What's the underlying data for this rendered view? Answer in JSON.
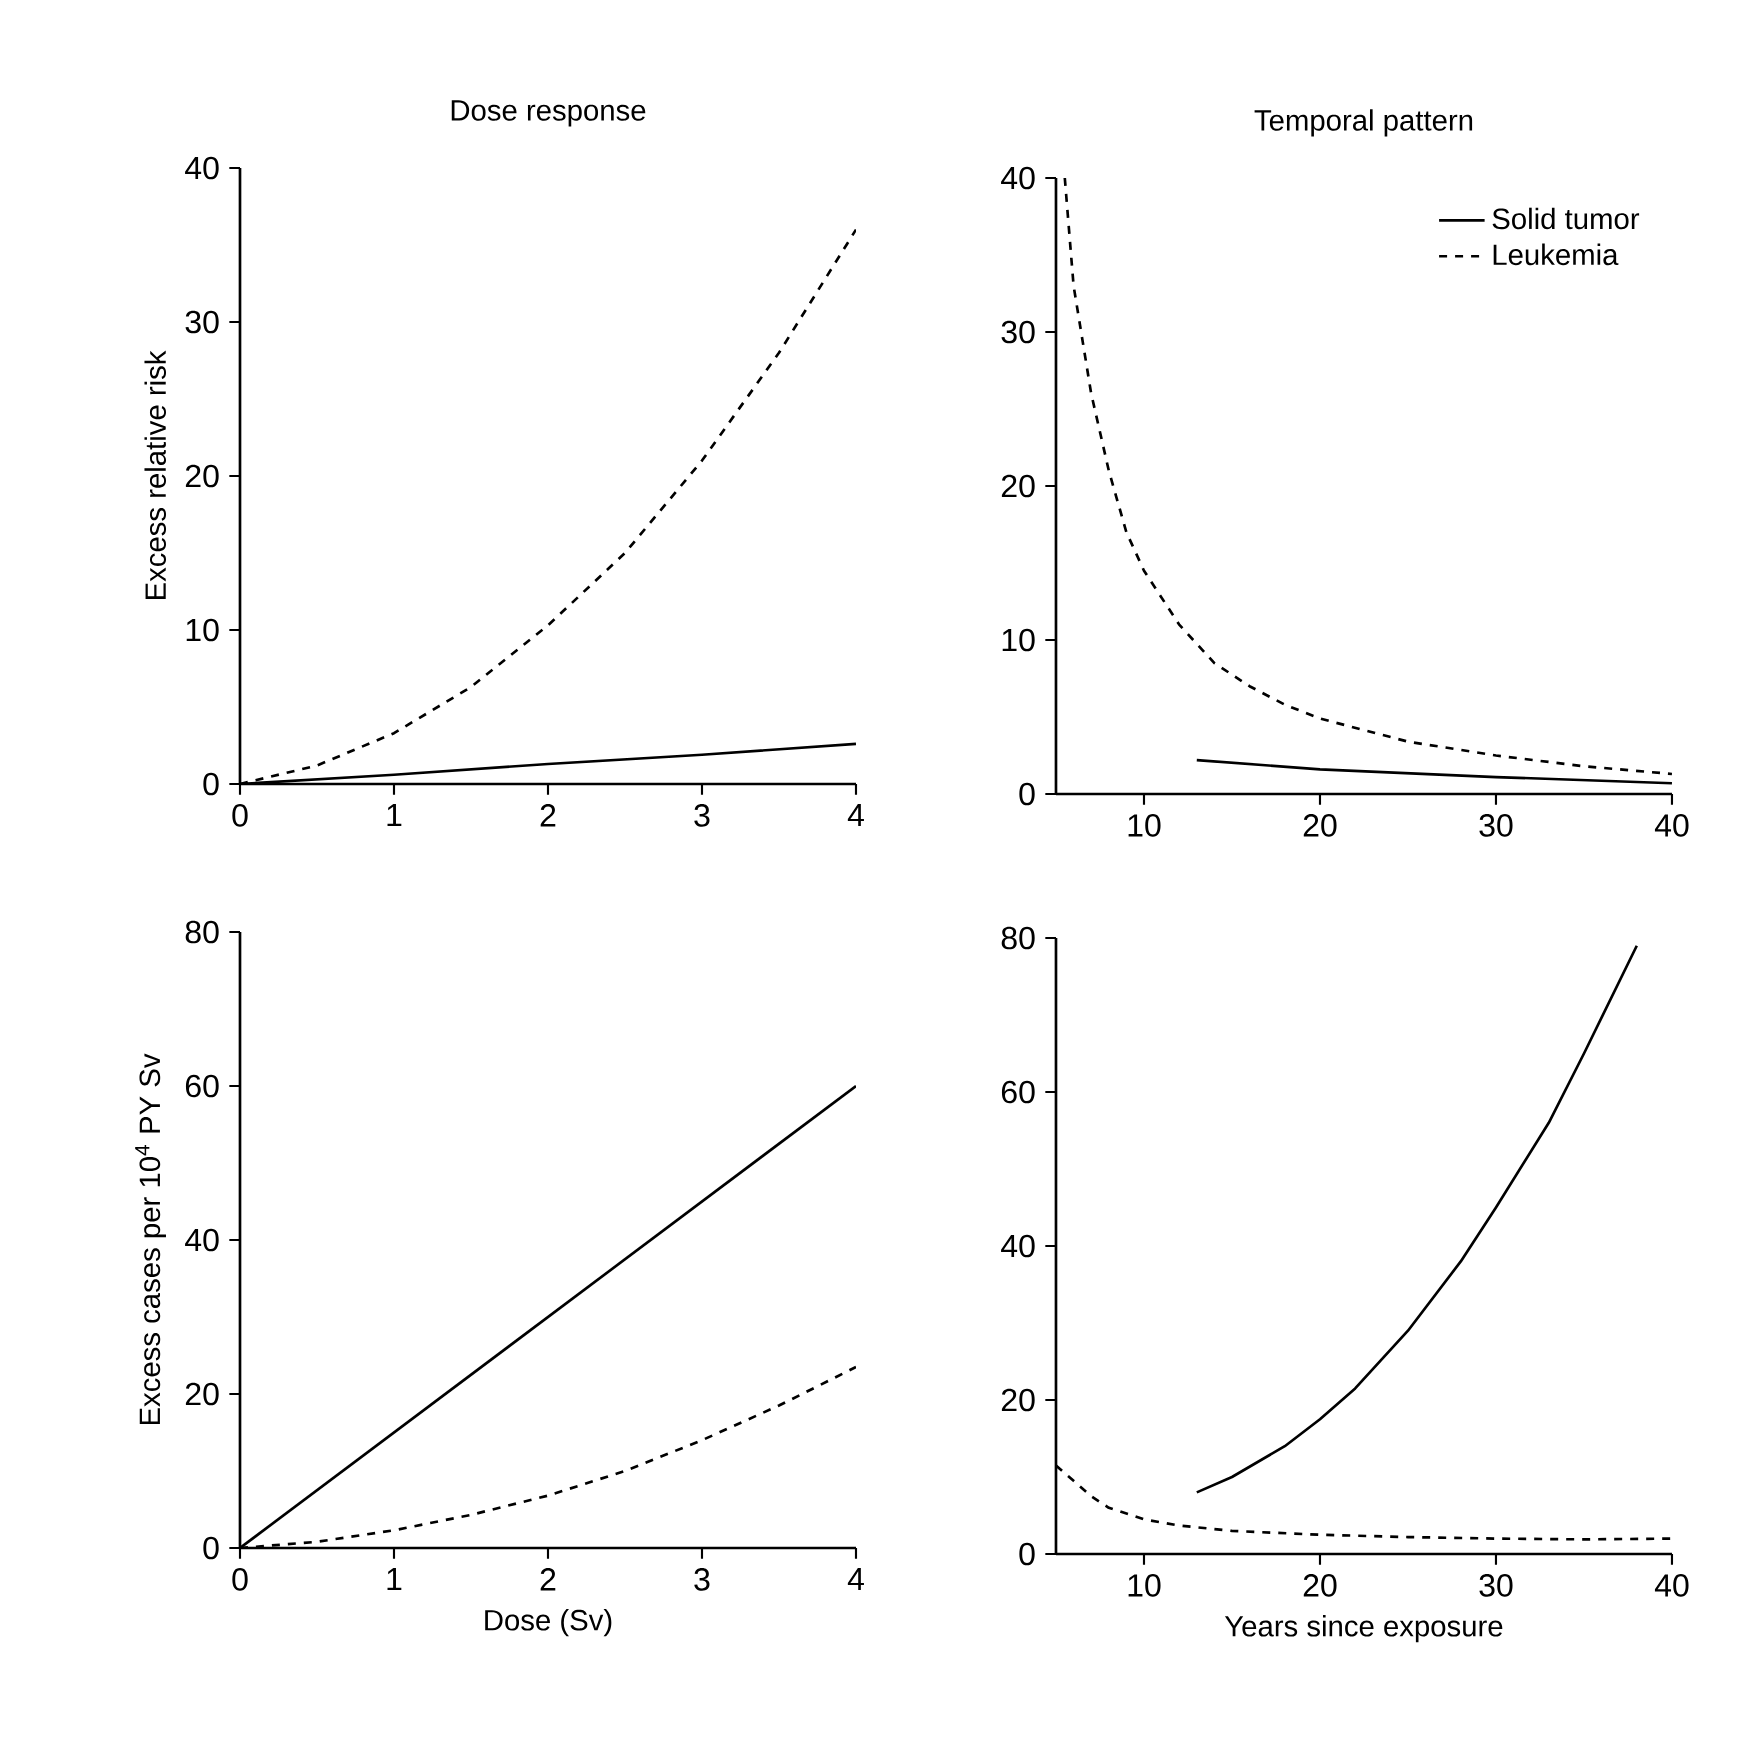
{
  "chart_data": [
    {
      "type": "line",
      "title": "Dose response",
      "ylabel": "Excess relative risk",
      "xlim": [
        0,
        4
      ],
      "ylim": [
        0,
        40
      ],
      "xticks": [
        0,
        1,
        2,
        3,
        4
      ],
      "yticks": [
        0,
        10,
        20,
        30,
        40
      ],
      "series": [
        {
          "color": "#000000",
          "line_style": "solid",
          "x": [
            0,
            1,
            2,
            3,
            4
          ],
          "values": [
            0,
            0.6,
            1.3,
            1.9,
            2.6
          ]
        },
        {
          "color": "#000000",
          "line_style": "dashed",
          "x": [
            0,
            0.5,
            1,
            1.5,
            2,
            2.5,
            3,
            3.5,
            4
          ],
          "values": [
            0,
            1.2,
            3.3,
            6.3,
            10.3,
            15,
            21,
            28,
            36
          ]
        }
      ]
    },
    {
      "type": "line",
      "title": "Temporal pattern",
      "xlim": [
        5,
        40
      ],
      "ylim": [
        0,
        40
      ],
      "xticks": [
        10,
        20,
        30,
        40
      ],
      "yticks": [
        0,
        10,
        20,
        30,
        40
      ],
      "legend": "top right",
      "series": [
        {
          "name": "Solid tumor",
          "color": "#000000",
          "line_style": "solid",
          "x": [
            13,
            20,
            30,
            40
          ],
          "values": [
            2.2,
            1.6,
            1.1,
            0.7
          ]
        },
        {
          "name": "Leukemia",
          "color": "#000000",
          "line_style": "dashed",
          "x": [
            5.5,
            6,
            7,
            8,
            9,
            10,
            12,
            14,
            16,
            18,
            20,
            25,
            30,
            35,
            40
          ],
          "values": [
            40,
            33,
            26,
            21,
            17,
            14.5,
            11,
            8.5,
            7,
            5.8,
            4.9,
            3.4,
            2.5,
            1.8,
            1.3
          ]
        }
      ]
    },
    {
      "type": "line",
      "xlabel": "Dose (Sv)",
      "ylabel": "Excess cases per 10$^{4}$ PY Sv",
      "xlim": [
        0,
        4
      ],
      "ylim": [
        0,
        80
      ],
      "xticks": [
        0,
        1,
        2,
        3,
        4
      ],
      "yticks": [
        0,
        20,
        40,
        60,
        80
      ],
      "series": [
        {
          "color": "#000000",
          "line_style": "solid",
          "x": [
            0,
            4
          ],
          "values": [
            0,
            60
          ]
        },
        {
          "color": "#000000",
          "line_style": "dashed",
          "x": [
            0,
            0.5,
            1,
            1.5,
            2,
            2.5,
            3,
            3.5,
            4
          ],
          "values": [
            0,
            0.8,
            2.3,
            4.3,
            6.8,
            10,
            14,
            18.5,
            23.5
          ]
        }
      ]
    },
    {
      "type": "line",
      "xlabel": "Years since exposure",
      "xlim": [
        5,
        40
      ],
      "ylim": [
        0,
        80
      ],
      "xticks": [
        10,
        20,
        30,
        40
      ],
      "yticks": [
        0,
        20,
        40,
        60,
        80
      ],
      "series": [
        {
          "color": "#000000",
          "line_style": "solid",
          "x": [
            13,
            15,
            18,
            20,
            22,
            25,
            28,
            30,
            33,
            35,
            38
          ],
          "values": [
            8,
            10,
            14,
            17.5,
            21.5,
            29,
            38,
            45,
            56,
            65,
            79
          ]
        },
        {
          "color": "#000000",
          "line_style": "dashed",
          "x": [
            5,
            6,
            7,
            8,
            10,
            12,
            15,
            20,
            25,
            30,
            35,
            40
          ],
          "values": [
            11.5,
            9.5,
            7.5,
            6,
            4.5,
            3.7,
            3,
            2.5,
            2.2,
            2,
            1.9,
            2
          ]
        }
      ]
    }
  ]
}
